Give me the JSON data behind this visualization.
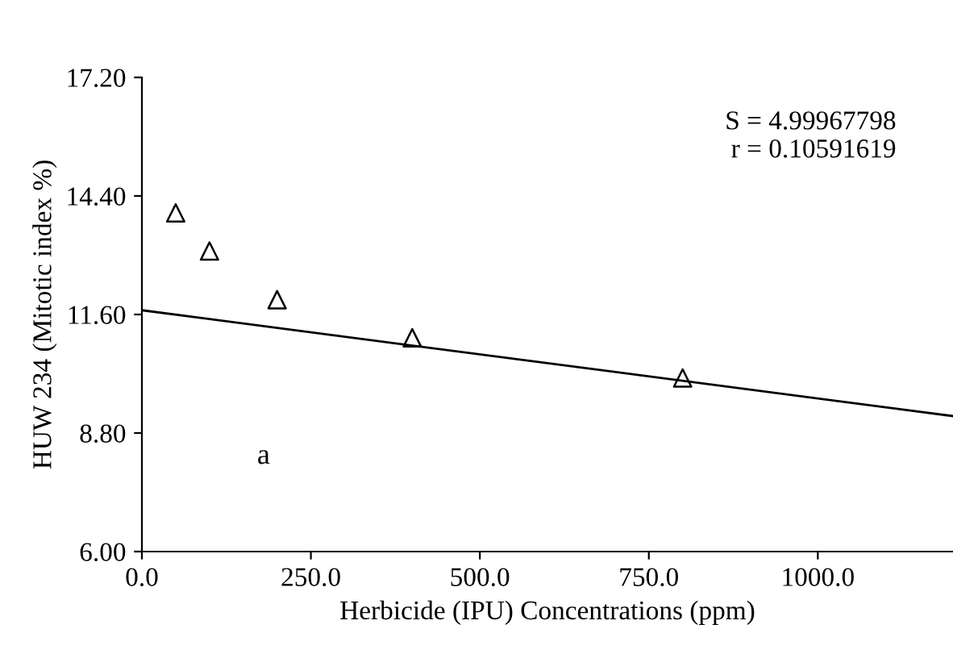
{
  "chart_data": {
    "type": "scatter",
    "xlabel": "Herbicide (IPU) Concentrations (ppm)",
    "ylabel": "HUW 234 (Mitotic index %)",
    "xlim": [
      0,
      1200
    ],
    "ylim": [
      6.0,
      17.2
    ],
    "xticks": [
      {
        "value": 0,
        "label": "0.0"
      },
      {
        "value": 250,
        "label": "250.0"
      },
      {
        "value": 500,
        "label": "500.0"
      },
      {
        "value": 750,
        "label": "750.0"
      },
      {
        "value": 1000,
        "label": "1000.0"
      }
    ],
    "yticks": [
      {
        "value": 6.0,
        "label": "6.00"
      },
      {
        "value": 8.8,
        "label": "8.80"
      },
      {
        "value": 11.6,
        "label": "11.60"
      },
      {
        "value": 14.4,
        "label": "14.40"
      },
      {
        "value": 17.2,
        "label": "17.20"
      }
    ],
    "grid": false,
    "legend": false,
    "series": [
      {
        "marker": "triangle",
        "color": "#000000",
        "x": [
          50,
          100,
          200,
          400,
          800
        ],
        "values": [
          14.0,
          13.1,
          11.95,
          11.05,
          10.1
        ]
      },
      {
        "type": "line",
        "line_style": "solid",
        "color": "#000000",
        "x": [
          0,
          1200
        ],
        "values": [
          11.7,
          9.2
        ]
      }
    ],
    "annotations": [
      "S = 4.99967798\nr = 0.10591619",
      "a"
    ]
  }
}
